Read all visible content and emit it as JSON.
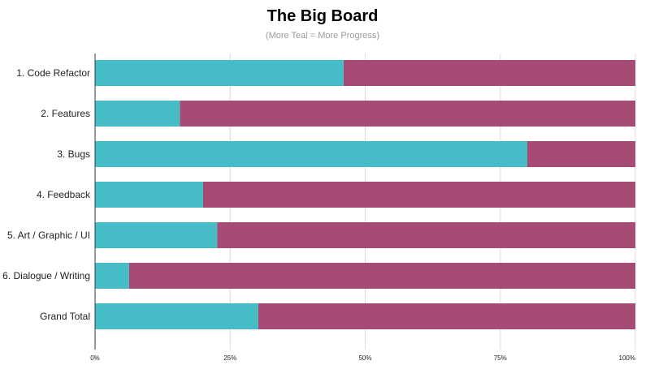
{
  "chart_data": {
    "type": "bar",
    "orientation": "horizontal",
    "stacked": true,
    "title": "The Big Board",
    "subtitle": "(More Teal = More Progress)",
    "categories": [
      "1. Code Refactor",
      "2. Features",
      "3. Bugs",
      "4. Feedback",
      "5. Art / Graphic / UI",
      "6. Dialogue / Writing",
      "Grand Total"
    ],
    "series": [
      {
        "color": "#46bcc7",
        "values": [
          46,
          15.7,
          80,
          20,
          22.6,
          6.3,
          30.2
        ]
      },
      {
        "color": "#a54b76",
        "values": [
          54,
          84.3,
          20,
          80,
          77.4,
          93.7,
          69.8
        ]
      }
    ],
    "xlim": [
      0,
      100
    ],
    "xticks": [
      0,
      25,
      50,
      75,
      100
    ],
    "xtick_labels": [
      "0%",
      "25%",
      "50%",
      "75%",
      "100%"
    ],
    "grid": true,
    "legend": "none"
  }
}
